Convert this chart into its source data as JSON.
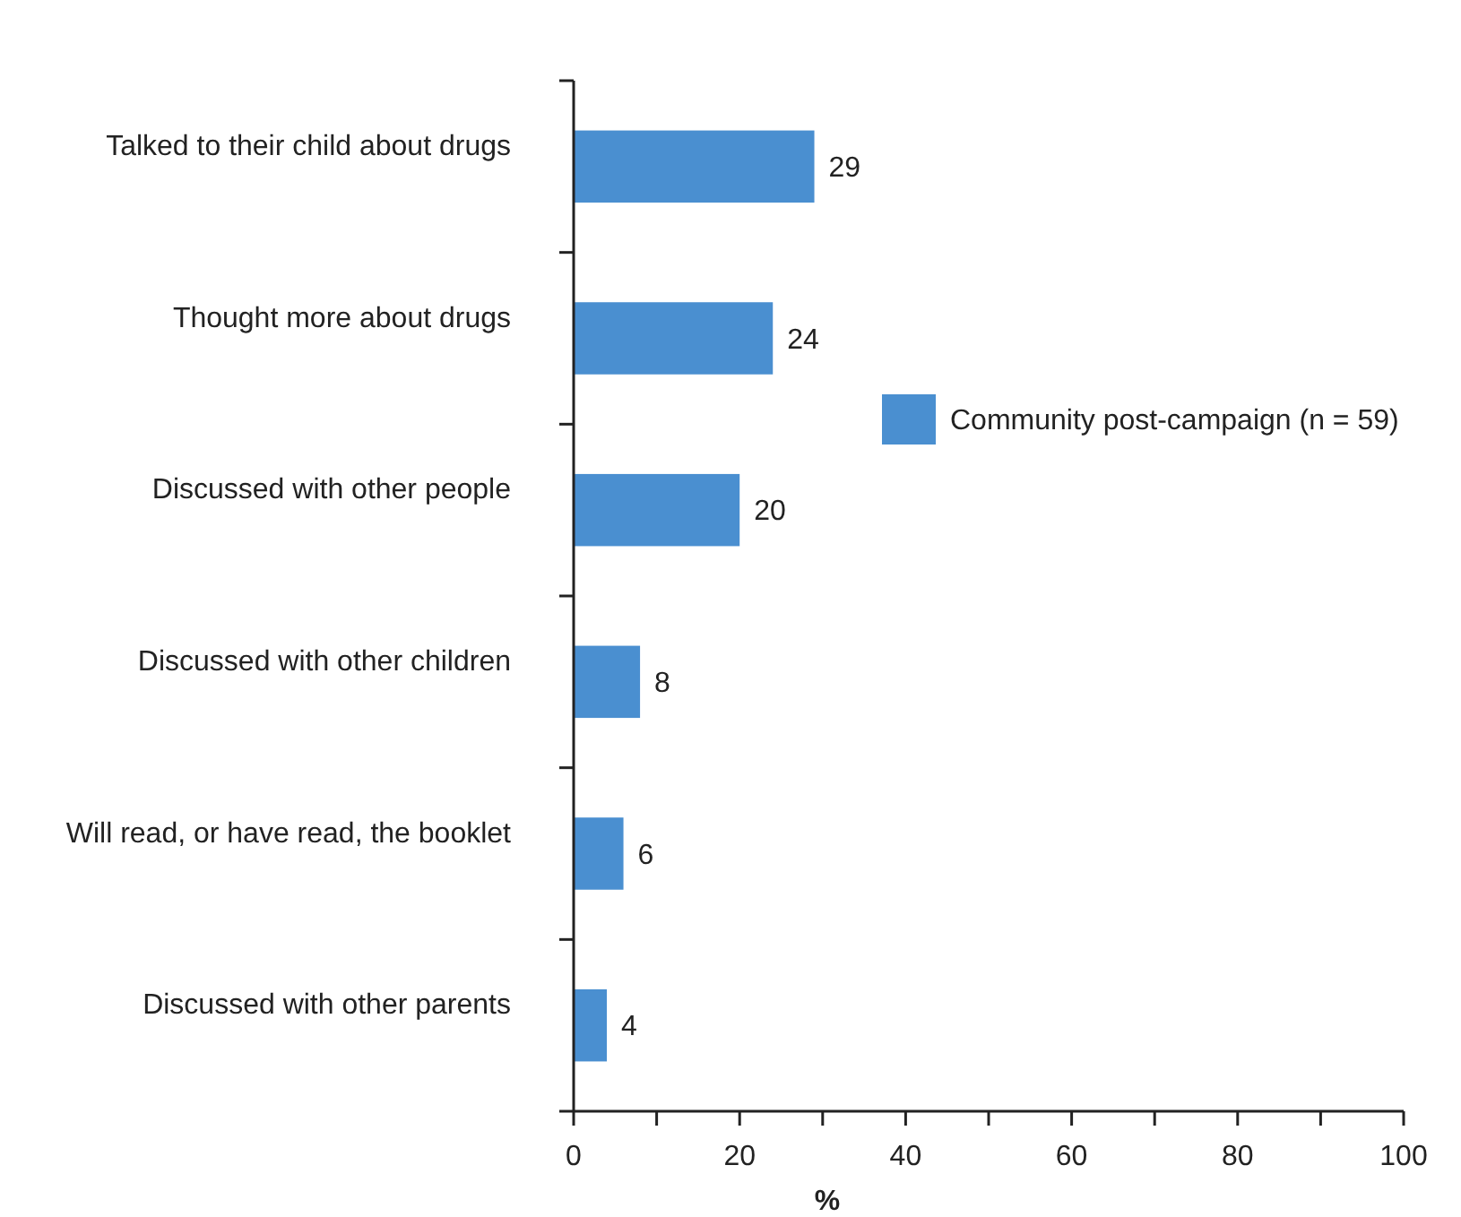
{
  "chart_data": {
    "type": "bar",
    "orientation": "horizontal",
    "xlabel": "%",
    "categories": [
      "Talked to their child about drugs",
      "Thought more about drugs",
      "Discussed with other people",
      "Discussed with other children",
      "Will read, or have read, the booklet",
      "Discussed with other parents"
    ],
    "series": [
      {
        "name": "Community post-campaign (n = 59)",
        "color": "#4a8fd0",
        "values": [
          29,
          24,
          20,
          8,
          6,
          4
        ]
      }
    ],
    "xlim": [
      0,
      100
    ],
    "xticks": [
      0,
      {
        "value": 10,
        "label": null
      },
      20,
      {
        "value": 30,
        "label": null
      },
      40,
      {
        "value": 50,
        "label": null
      },
      60,
      {
        "value": 70,
        "label": null
      },
      80,
      {
        "value": 90,
        "label": null
      },
      100
    ],
    "data_labels": true,
    "legend": "right",
    "grid": false
  }
}
